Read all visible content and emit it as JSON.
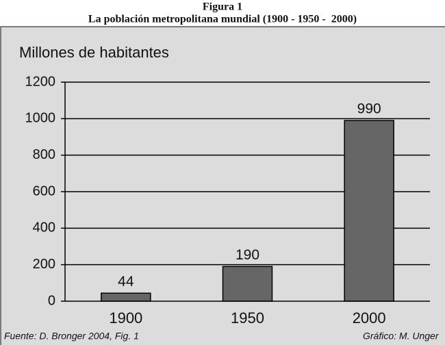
{
  "chart_data": {
    "type": "bar",
    "title": "Figura 1",
    "subtitle": "La población metropolitana mundial (1900 - 1950 -  2000)",
    "y_axis_label": "Millones de habitantes",
    "categories": [
      "1900",
      "1950",
      "2000"
    ],
    "values": [
      44,
      190,
      990
    ],
    "color": "#666666",
    "ylim": [
      0,
      1200
    ],
    "yticks": [
      0,
      200,
      400,
      600,
      800,
      1000,
      1200
    ],
    "grid": true,
    "source": "Fuente: D. Bronger 2004, Fig. 1",
    "credit": "Gráfico: M. Unger"
  }
}
